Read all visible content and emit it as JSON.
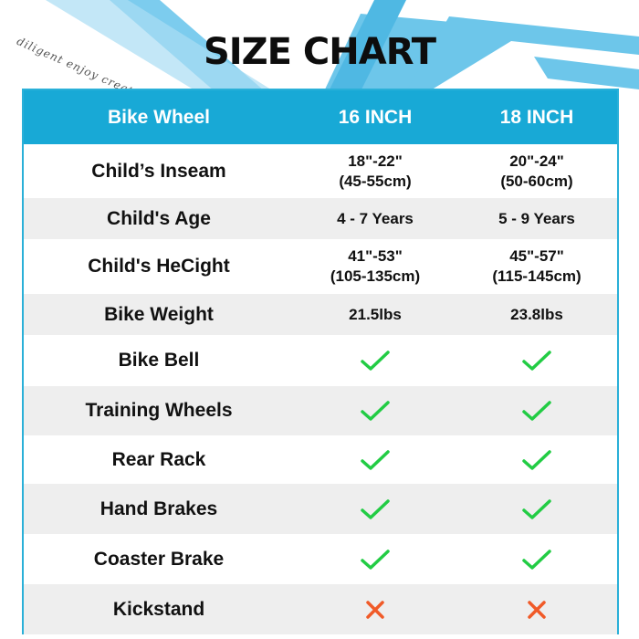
{
  "page": {
    "title": "SIZE CHART",
    "watermark": "diligent enjoy creat"
  },
  "colors": {
    "accent": "#18a9d6",
    "stripe": "#6dc6ea",
    "check": "#22cc44",
    "cross": "#f05a28"
  },
  "table": {
    "headers": [
      "Bike Wheel",
      "16 INCH",
      "18 INCH"
    ],
    "rows": [
      {
        "label": "Child’s Inseam",
        "v16": [
          "18\"-22\"",
          "(45-55cm)"
        ],
        "v18": [
          "20\"-24\"",
          "(50-60cm)"
        ]
      },
      {
        "label": "Child's Age",
        "v16": [
          "4 - 7 Years"
        ],
        "v18": [
          "5 - 9 Years"
        ]
      },
      {
        "label": "Child's HeCight",
        "v16": [
          "41\"-53\"",
          "(105-135cm)"
        ],
        "v18": [
          "45\"-57\"",
          "(115-145cm)"
        ]
      },
      {
        "label": "Bike Weight",
        "v16": [
          "21.5lbs"
        ],
        "v18": [
          "23.8lbs"
        ]
      },
      {
        "label": "Bike Bell",
        "v16": "check-icon",
        "v18": "check-icon"
      },
      {
        "label": "Training Wheels",
        "v16": "check-icon",
        "v18": "check-icon"
      },
      {
        "label": "Rear Rack",
        "v16": "check-icon",
        "v18": "check-icon"
      },
      {
        "label": "Hand Brakes",
        "v16": "check-icon",
        "v18": "check-icon"
      },
      {
        "label": "Coaster Brake",
        "v16": "check-icon",
        "v18": "check-icon"
      },
      {
        "label": "Kickstand",
        "v16": "cross-icon",
        "v18": "cross-icon"
      }
    ]
  }
}
